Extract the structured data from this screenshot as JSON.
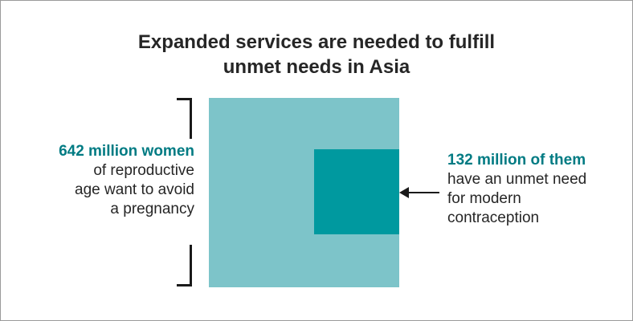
{
  "title": {
    "line1": "Expanded services are needed to fulfill",
    "line2": "unmet needs in Asia"
  },
  "left_label": {
    "highlight": "642 million women",
    "lines": [
      "of reproductive",
      "age want to avoid",
      "a pregnancy"
    ]
  },
  "right_label": {
    "highlight": "132 million of them",
    "lines": [
      "have an unmet need",
      "for modern",
      "contraception"
    ]
  },
  "colors": {
    "large_square": "#7dc4c9",
    "small_square": "#00999f",
    "highlight_text": "#007b83"
  },
  "values": {
    "total_millions": 642,
    "unmet_millions": 132
  }
}
